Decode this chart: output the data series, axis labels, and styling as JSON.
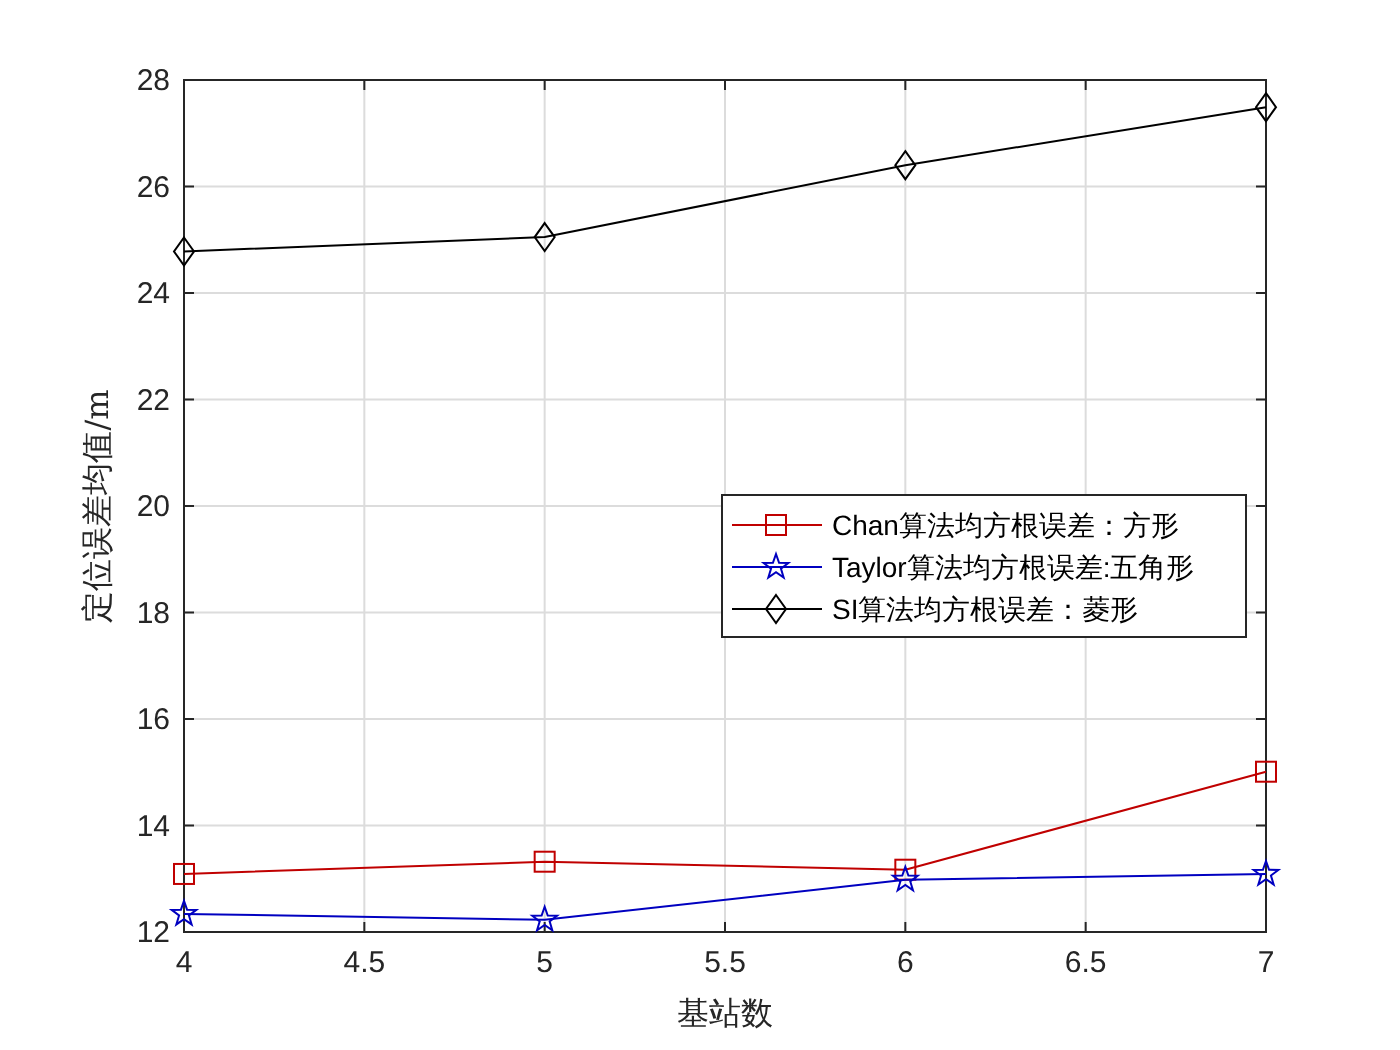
{
  "chart_data": {
    "type": "line",
    "xlabel": "基站数",
    "ylabel": "定位误差均值/m",
    "x": [
      4,
      5,
      6,
      7
    ],
    "series": [
      {
        "name": "Chan算法均方根误差：方形",
        "color": "#c00000",
        "marker": "square",
        "values": [
          13.09,
          13.32,
          13.17,
          15.01
        ]
      },
      {
        "name": "Taylor算法均方根误差:五角形",
        "color": "#0000c0",
        "marker": "star",
        "values": [
          12.34,
          12.23,
          12.98,
          13.09
        ]
      },
      {
        "name": "SI算法均方根误差：菱形",
        "color": "#000000",
        "marker": "diamond",
        "values": [
          24.78,
          25.05,
          26.4,
          27.49
        ]
      }
    ],
    "xlim": [
      4,
      7
    ],
    "xticks": [
      4,
      4.5,
      5,
      5.5,
      6,
      6.5,
      7
    ],
    "ylim": [
      12,
      28
    ],
    "yticks": [
      12,
      14,
      16,
      18,
      20,
      22,
      24,
      26,
      28
    ],
    "grid": true,
    "legend": "right",
    "line_style": "solid"
  }
}
